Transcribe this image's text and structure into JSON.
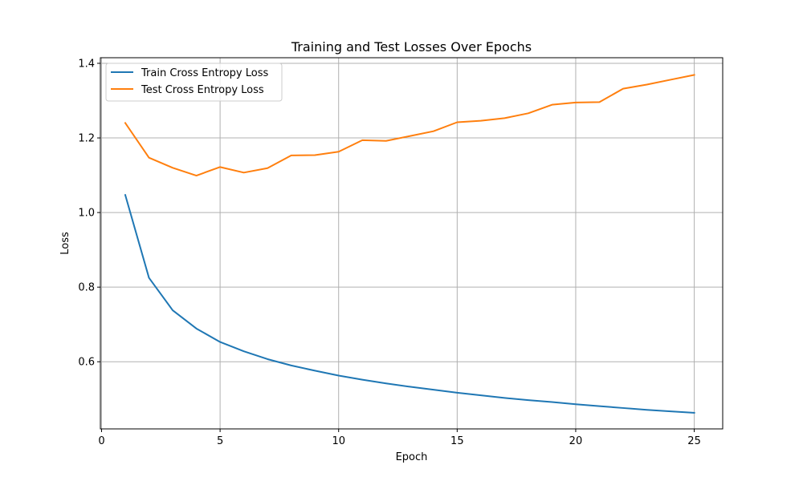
{
  "chart_data": {
    "type": "line",
    "title": "Training and Test Losses Over Epochs",
    "xlabel": "Epoch",
    "ylabel": "Loss",
    "x": [
      1,
      2,
      3,
      4,
      5,
      6,
      7,
      8,
      9,
      10,
      11,
      12,
      13,
      14,
      15,
      16,
      17,
      18,
      19,
      20,
      21,
      22,
      23,
      24,
      25
    ],
    "xlim": [
      -0.05,
      26.2
    ],
    "ylim": [
      0.42,
      1.415
    ],
    "xticks": [
      0,
      5,
      10,
      15,
      20,
      25
    ],
    "xtick_labels": [
      "0",
      "5",
      "10",
      "15",
      "20",
      "25"
    ],
    "yticks": [
      0.6,
      0.8,
      1.0,
      1.2,
      1.4
    ],
    "ytick_labels": [
      "0.6",
      "0.8",
      "1.0",
      "1.2",
      "1.4"
    ],
    "grid": true,
    "legend_position": "top-left",
    "series": [
      {
        "name": "Train Cross Entropy Loss",
        "color": "#1f77b4",
        "values": [
          1.047,
          0.825,
          0.738,
          0.689,
          0.653,
          0.628,
          0.607,
          0.59,
          0.576,
          0.563,
          0.552,
          0.542,
          0.533,
          0.525,
          0.517,
          0.51,
          0.503,
          0.497,
          0.492,
          0.486,
          0.481,
          0.476,
          0.471,
          0.467,
          0.463
        ]
      },
      {
        "name": "Test Cross Entropy Loss",
        "color": "#ff7f0e",
        "values": [
          1.24,
          1.147,
          1.12,
          1.099,
          1.122,
          1.107,
          1.119,
          1.153,
          1.154,
          1.163,
          1.194,
          1.192,
          1.205,
          1.218,
          1.242,
          1.246,
          1.253,
          1.266,
          1.289,
          1.295,
          1.296,
          1.332,
          1.343,
          1.356,
          1.369
        ]
      }
    ]
  }
}
